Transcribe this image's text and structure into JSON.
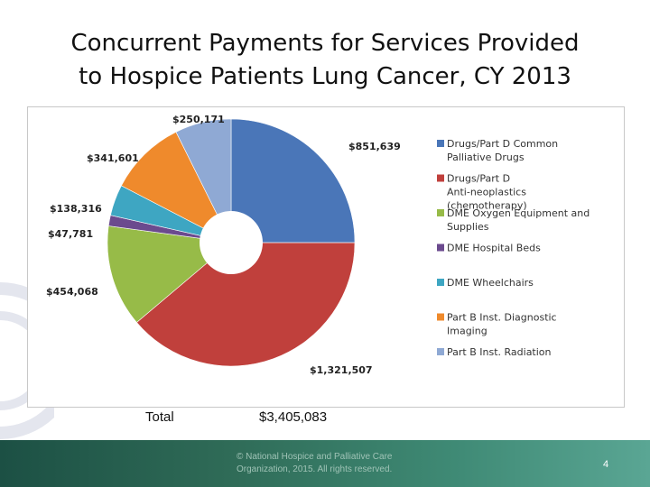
{
  "slide": {
    "title_line1": "Concurrent Payments for Services Provided",
    "title_line2": "to Hospice Patients Lung Cancer, CY 2013",
    "total_label": "Total",
    "total_value": "$3,405,083",
    "copyright": "© National Hospice and Palliative Care Organization, 2015. All rights reserved.",
    "page_number": "4"
  },
  "chart_data": {
    "type": "pie",
    "title": "",
    "legend_position": "right",
    "slices": [
      {
        "name": "Drugs/Part D Common Palliative Drugs",
        "value": 851639,
        "label": "$851,639",
        "color": "#4a76b8"
      },
      {
        "name": "Drugs/Part D Anti-neoplastics (chemotherapy)",
        "value": 1321507,
        "label": "$1,321,507",
        "color": "#c0403c"
      },
      {
        "name": "DME Oxygen Equipment and Supplies",
        "value": 454068,
        "label": "$454,068",
        "color": "#97bb48"
      },
      {
        "name": "DME Hospital Beds",
        "value": 47781,
        "label": "$47,781",
        "color": "#6b4a8e"
      },
      {
        "name": "DME Wheelchairs",
        "value": 138316,
        "label": "$138,316",
        "color": "#3ea6c2"
      },
      {
        "name": "Part B Inst. Diagnostic Imaging",
        "value": 341601,
        "label": "$341,601",
        "color": "#ef8a2c"
      },
      {
        "name": "Part B Inst. Radiation",
        "value": 250171,
        "label": "$250,171",
        "color": "#8fa9d4"
      }
    ]
  }
}
